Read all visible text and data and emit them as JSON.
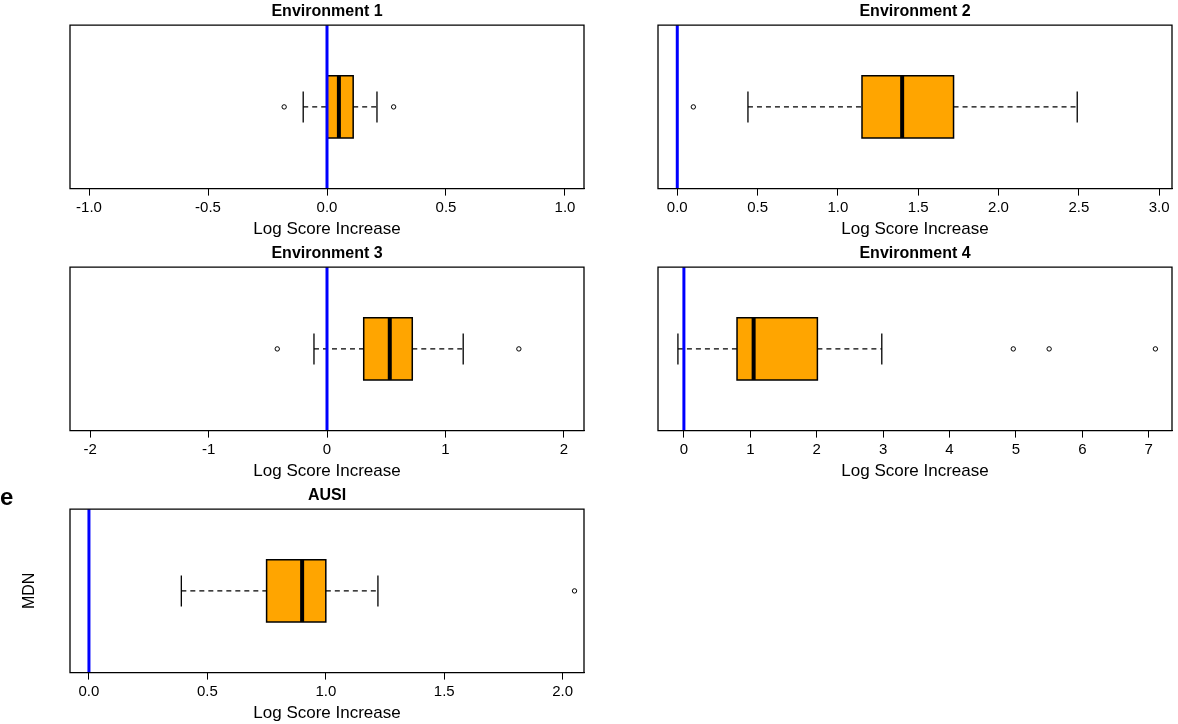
{
  "chart_data": [
    {
      "type": "box",
      "title": "Environment 1",
      "xlabel": "Log Score Increase",
      "orientation": "horizontal",
      "categories": [
        null
      ],
      "tick_labels": "x",
      "xlim": [
        -1.08,
        1.08
      ],
      "xticks": [
        {
          "value": -1,
          "label": "-1.0"
        },
        {
          "value": -0.5,
          "label": "-0.5"
        },
        {
          "value": 0,
          "label": "0.0"
        },
        {
          "value": 0.5,
          "label": "0.5"
        },
        {
          "value": 1,
          "label": "1.0"
        }
      ],
      "series": [
        {
          "color": "#ffa500",
          "boxes": [
            {
              "low": -0.1,
              "q1": 0.0,
              "median": 0.05,
              "q3": 0.11,
              "high": 0.21,
              "outliers": [
                -0.18,
                0.28
              ]
            }
          ]
        }
      ],
      "ref_lines": [
        {
          "axis": "x",
          "value": 0,
          "color": "#0000ff"
        }
      ]
    },
    {
      "type": "box",
      "title": "Environment 2",
      "xlabel": "Log Score Increase",
      "orientation": "horizontal",
      "categories": [
        null
      ],
      "tick_labels": "x",
      "xlim": [
        -0.12,
        3.08
      ],
      "xticks": [
        {
          "value": 0,
          "label": "0.0"
        },
        {
          "value": 0.5,
          "label": "0.5"
        },
        {
          "value": 1,
          "label": "1.0"
        },
        {
          "value": 1.5,
          "label": "1.5"
        },
        {
          "value": 2,
          "label": "2.0"
        },
        {
          "value": 2.5,
          "label": "2.5"
        },
        {
          "value": 3,
          "label": "3.0"
        }
      ],
      "series": [
        {
          "color": "#ffa500",
          "boxes": [
            {
              "low": 0.44,
              "q1": 1.15,
              "median": 1.4,
              "q3": 1.72,
              "high": 2.49,
              "outliers": [
                0.1
              ]
            }
          ]
        }
      ],
      "ref_lines": [
        {
          "axis": "x",
          "value": 0,
          "color": "#0000ff"
        }
      ]
    },
    {
      "type": "box",
      "title": "Environment 3",
      "xlabel": "Log Score Increase",
      "orientation": "horizontal",
      "categories": [
        null
      ],
      "tick_labels": "x",
      "xlim": [
        -2.17,
        2.17
      ],
      "xticks": [
        -2,
        -1,
        0,
        1,
        2
      ],
      "series": [
        {
          "color": "#ffa500",
          "boxes": [
            {
              "low": -0.11,
              "q1": 0.31,
              "median": 0.53,
              "q3": 0.72,
              "high": 1.15,
              "outliers": [
                -0.42,
                1.62
              ]
            }
          ]
        }
      ],
      "ref_lines": [
        {
          "axis": "x",
          "value": 0,
          "color": "#0000ff"
        }
      ]
    },
    {
      "type": "box",
      "title": "Environment 4",
      "xlabel": "Log Score Increase",
      "orientation": "horizontal",
      "categories": [
        null
      ],
      "tick_labels": "x",
      "xlim": [
        -0.39,
        7.35
      ],
      "xticks": [
        0,
        1,
        2,
        3,
        4,
        5,
        6,
        7
      ],
      "series": [
        {
          "color": "#ffa500",
          "boxes": [
            {
              "low": -0.09,
              "q1": 0.8,
              "median": 1.05,
              "q3": 2.01,
              "high": 2.98,
              "outliers": [
                4.96,
                5.5,
                7.1
              ]
            }
          ]
        }
      ],
      "ref_lines": [
        {
          "axis": "x",
          "value": 0,
          "color": "#0000ff"
        }
      ]
    },
    {
      "type": "box",
      "title": "AUSI",
      "xlabel": "Log Score Increase",
      "ylabel": "MDN",
      "annotations": [
        "e"
      ],
      "orientation": "horizontal",
      "categories": [
        null
      ],
      "tick_labels": "x",
      "xlim": [
        -0.08,
        2.09
      ],
      "xticks": [
        {
          "value": 0,
          "label": "0.0"
        },
        {
          "value": 0.5,
          "label": "0.5"
        },
        {
          "value": 1,
          "label": "1.0"
        },
        {
          "value": 1.5,
          "label": "1.5"
        },
        {
          "value": 2,
          "label": "2.0"
        }
      ],
      "series": [
        {
          "color": "#ffa500",
          "boxes": [
            {
              "low": 0.39,
              "q1": 0.75,
              "median": 0.9,
              "q3": 1.0,
              "high": 1.22,
              "outliers": [
                2.05
              ]
            }
          ]
        }
      ],
      "ref_lines": [
        {
          "axis": "x",
          "value": 0,
          "color": "#0000ff"
        }
      ]
    }
  ]
}
